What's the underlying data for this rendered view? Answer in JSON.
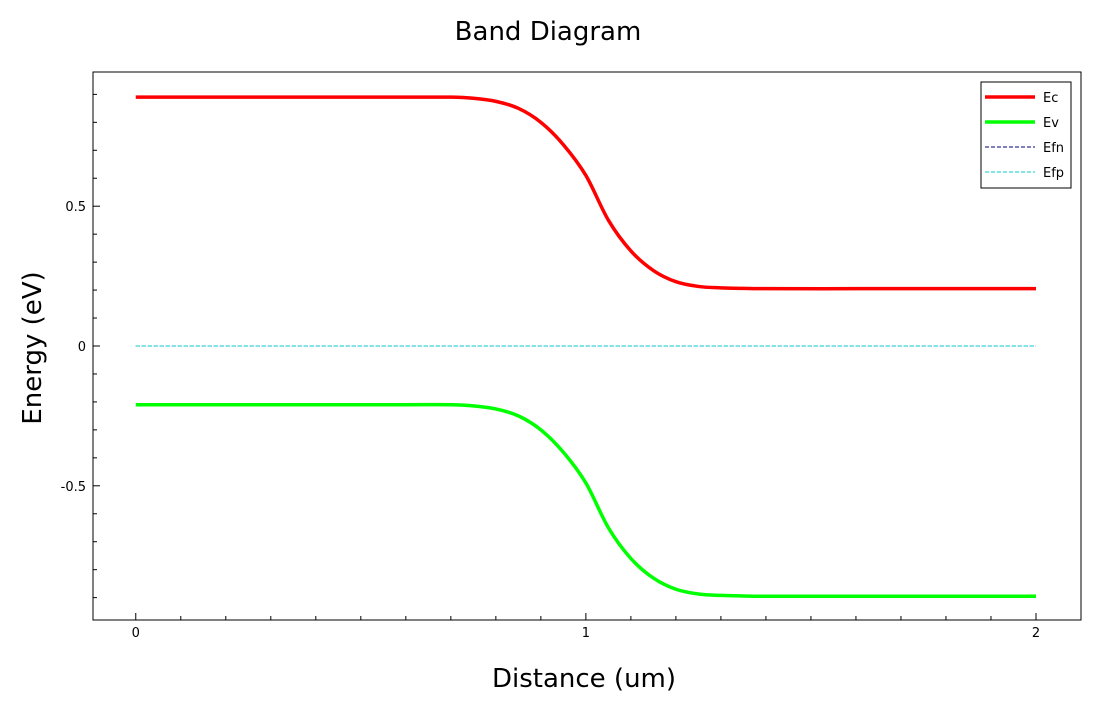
{
  "chart_data": {
    "type": "line",
    "title": "Band Diagram",
    "xlabel": "Distance (um)",
    "ylabel": "Energy (eV)",
    "xlim": [
      -0.095,
      2.1
    ],
    "ylim": [
      -0.98,
      0.98
    ],
    "x_ticks": [
      {
        "value": 0,
        "label": "0"
      },
      {
        "value": 1,
        "label": "1"
      },
      {
        "value": 2,
        "label": "2"
      }
    ],
    "y_ticks": [
      {
        "value": -0.5,
        "label": "-0.5"
      },
      {
        "value": 0,
        "label": "0"
      },
      {
        "value": 0.5,
        "label": "0.5"
      }
    ],
    "x_minor_step": 0.1,
    "y_minor_step": 0.1,
    "grid": false,
    "legend_position": "top-right",
    "series": [
      {
        "name": "Ec",
        "color": "#ff0000",
        "style": "solid",
        "x": [
          0,
          0.2,
          0.4,
          0.6,
          0.7,
          0.75,
          0.8,
          0.85,
          0.9,
          0.95,
          1.0,
          1.05,
          1.1,
          1.15,
          1.2,
          1.25,
          1.3,
          1.35,
          1.4,
          1.6,
          1.8,
          2.0
        ],
        "y": [
          0.89,
          0.89,
          0.89,
          0.89,
          0.89,
          0.886,
          0.875,
          0.85,
          0.8,
          0.72,
          0.61,
          0.45,
          0.34,
          0.27,
          0.23,
          0.213,
          0.208,
          0.206,
          0.205,
          0.205,
          0.205,
          0.205
        ]
      },
      {
        "name": "Ev",
        "color": "#00ff00",
        "style": "solid",
        "x": [
          0,
          0.2,
          0.4,
          0.6,
          0.7,
          0.75,
          0.8,
          0.85,
          0.9,
          0.95,
          1.0,
          1.05,
          1.1,
          1.15,
          1.2,
          1.25,
          1.3,
          1.35,
          1.4,
          1.6,
          1.8,
          2.0
        ],
        "y": [
          -0.21,
          -0.21,
          -0.21,
          -0.21,
          -0.21,
          -0.214,
          -0.225,
          -0.25,
          -0.3,
          -0.38,
          -0.49,
          -0.65,
          -0.76,
          -0.83,
          -0.87,
          -0.887,
          -0.892,
          -0.894,
          -0.895,
          -0.895,
          -0.895,
          -0.895
        ]
      },
      {
        "name": "Efn",
        "color": "#000080",
        "style": "dashed",
        "x": [
          0,
          2.0
        ],
        "y": [
          0,
          0
        ]
      },
      {
        "name": "Efp",
        "color": "#00cccc",
        "style": "dashed",
        "x": [
          0,
          2.0
        ],
        "y": [
          0,
          0
        ]
      }
    ]
  }
}
